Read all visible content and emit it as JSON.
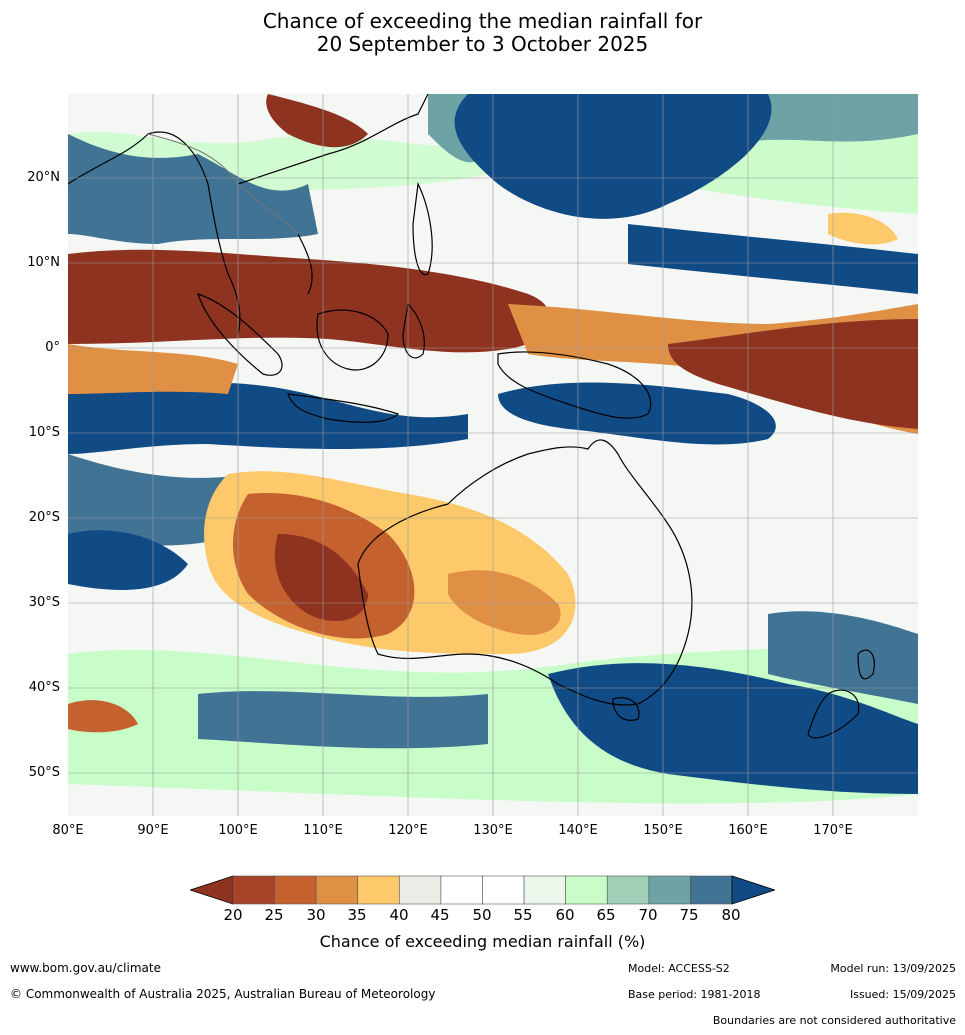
{
  "title_line1": "Chance of exceeding the median rainfall for",
  "title_line2": "20 September to 3 October 2025",
  "lat_labels": [
    "20°N",
    "10°N",
    "0°",
    "10°S",
    "20°S",
    "30°S",
    "40°S",
    "50°S"
  ],
  "lon_labels": [
    "80°E",
    "90°E",
    "100°E",
    "110°E",
    "120°E",
    "130°E",
    "140°E",
    "150°E",
    "160°E",
    "170°E"
  ],
  "colorbar": {
    "ticks": [
      "20",
      "25",
      "30",
      "35",
      "40",
      "45",
      "50",
      "55",
      "60",
      "65",
      "70",
      "75",
      "80"
    ],
    "colors": [
      "#a8432a",
      "#c4612f",
      "#df9045",
      "#fdc96a",
      "#edebe6",
      "#ffffff",
      "#ffffff",
      "#eaf7ea",
      "#c8fcc8",
      "#9fcfb6",
      "#6ea3a5",
      "#417395"
    ],
    "low_color": "#8f3321",
    "high_color": "#114b86",
    "label": "Chance of exceeding median rainfall (%)"
  },
  "footer": {
    "website": "www.bom.gov.au/climate",
    "copyright": "© Commonwealth of Australia 2025, Australian Bureau of Meteorology",
    "model": "Model: ACCESS-S2",
    "base_period": "Base period: 1981-2018",
    "model_run": "Model run: 13/09/2025",
    "issued": "Issued: 15/09/2025",
    "disclaimer": "Boundaries are not considered authoritative"
  }
}
